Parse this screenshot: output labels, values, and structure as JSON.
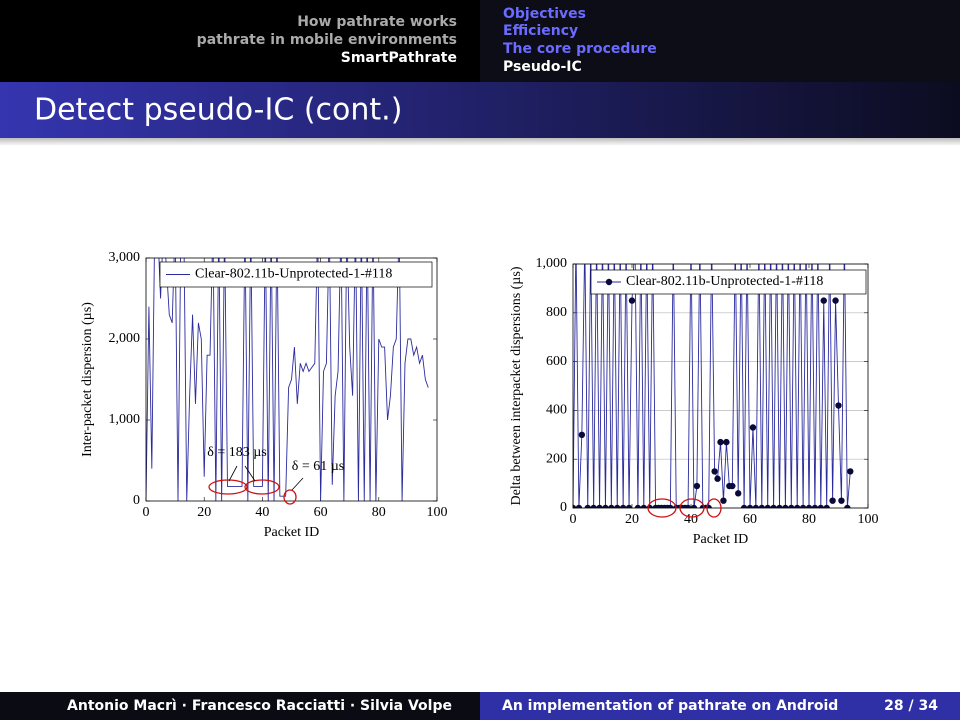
{
  "header": {
    "left_nav": [
      "How pathrate works",
      "pathrate in mobile environments",
      "SmartPathrate"
    ],
    "right_nav": [
      "Objectives",
      "Efficiency",
      "The core procedure",
      "Pseudo-IC"
    ],
    "title": "Detect pseudo-IC (cont.)"
  },
  "chart_data": [
    {
      "type": "line",
      "xlabel": "Packet ID",
      "ylabel": "Inter-packet dispersion (µs)",
      "xlim": [
        0,
        100
      ],
      "ylim": [
        0,
        3000
      ],
      "xticks": [
        0,
        20,
        40,
        60,
        80,
        100
      ],
      "yticks": [
        0,
        {
          "value": 1000,
          "label": "1,000"
        },
        {
          "value": 2000,
          "label": "2,000"
        },
        {
          "value": 3000,
          "label": "3,000"
        }
      ],
      "grid": false,
      "legend": "upper right",
      "annotations": [
        "δ = 183 µs",
        "δ = 61 µs"
      ],
      "series": [
        {
          "name": "Clear-802.11b-Unprotected-1-#118",
          "color": "#2b2b9e",
          "markers": false,
          "x": [
            0,
            1,
            2,
            3,
            4,
            5,
            6,
            7,
            8,
            9,
            10,
            11,
            12,
            13,
            14,
            15,
            16,
            17,
            18,
            19,
            20,
            21,
            22,
            23,
            24,
            25,
            26,
            27,
            28,
            29,
            30,
            31,
            32,
            33,
            34,
            35,
            36,
            37,
            38,
            39,
            40,
            41,
            42,
            43,
            44,
            45,
            46,
            47,
            48,
            49,
            50,
            51,
            52,
            53,
            54,
            55,
            56,
            57,
            58,
            59,
            60,
            61,
            62,
            63,
            64,
            65,
            66,
            67,
            68,
            69,
            70,
            71,
            72,
            73,
            74,
            75,
            76,
            77,
            78,
            79,
            80,
            81,
            82,
            83,
            84,
            85,
            86,
            87,
            88,
            89,
            90,
            91,
            92,
            93,
            94,
            95,
            96,
            97
          ],
          "values": [
            0,
            2400,
            400,
            3400,
            3400,
            2500,
            3400,
            2900,
            2300,
            2200,
            3400,
            0,
            3400,
            3400,
            0,
            1300,
            2300,
            1200,
            2200,
            2000,
            300,
            1800,
            1800,
            3400,
            0,
            3400,
            0,
            3400,
            180,
            180,
            180,
            180,
            180,
            180,
            3400,
            0,
            3400,
            180,
            180,
            180,
            180,
            3400,
            0,
            3400,
            0,
            3400,
            60,
            60,
            60,
            1400,
            1500,
            1900,
            1200,
            1700,
            1600,
            1700,
            1600,
            1650,
            1700,
            3400,
            0,
            1600,
            1700,
            3400,
            200,
            1300,
            1600,
            3400,
            0,
            3400,
            1900,
            1300,
            3400,
            0,
            3400,
            0,
            3400,
            0,
            3400,
            0,
            2000,
            1900,
            1900,
            1000,
            1300,
            1900,
            2000,
            3400,
            0,
            1700,
            2000,
            2000,
            1800,
            1900,
            1700,
            1800,
            1500,
            1400
          ]
        }
      ]
    },
    {
      "type": "line",
      "xlabel": "Packet ID",
      "ylabel": "Delta between interpacket dispersions (µs)",
      "xlim": [
        0,
        100
      ],
      "ylim": [
        0,
        1000
      ],
      "xticks": [
        0,
        20,
        40,
        60,
        80,
        100
      ],
      "yticks": [
        0,
        200,
        400,
        600,
        800,
        {
          "value": 1000,
          "label": "1,000"
        }
      ],
      "grid": true,
      "legend": "upper right",
      "series": [
        {
          "name": "Clear-802.11b-Unprotected-1-#118",
          "color": "#2b2b9e",
          "marker_color": "#0a0a3a",
          "markers": true,
          "x": [
            0,
            1,
            2,
            3,
            4,
            5,
            6,
            7,
            8,
            9,
            10,
            11,
            12,
            13,
            14,
            15,
            16,
            17,
            18,
            19,
            20,
            21,
            22,
            23,
            24,
            25,
            26,
            27,
            28,
            29,
            30,
            31,
            32,
            33,
            34,
            35,
            36,
            37,
            38,
            39,
            40,
            41,
            42,
            43,
            44,
            45,
            46,
            47,
            48,
            49,
            50,
            51,
            52,
            53,
            54,
            55,
            56,
            57,
            58,
            59,
            60,
            61,
            62,
            63,
            64,
            65,
            66,
            67,
            68,
            69,
            70,
            71,
            72,
            73,
            74,
            75,
            76,
            77,
            78,
            79,
            80,
            81,
            82,
            83,
            84,
            85,
            86,
            87,
            88,
            89,
            90,
            91,
            92,
            93,
            94
          ],
          "values": [
            0,
            1100,
            0,
            300,
            1100,
            0,
            1100,
            0,
            1100,
            0,
            1100,
            0,
            1100,
            0,
            1100,
            0,
            1100,
            0,
            1100,
            0,
            850,
            1100,
            0,
            1100,
            0,
            1100,
            0,
            1100,
            0,
            0,
            0,
            0,
            0,
            0,
            1100,
            0,
            0,
            0,
            0,
            0,
            1100,
            0,
            90,
            1100,
            0,
            0,
            0,
            1100,
            150,
            120,
            270,
            30,
            270,
            90,
            90,
            1100,
            60,
            1100,
            0,
            1100,
            0,
            330,
            0,
            1100,
            0,
            1100,
            0,
            1100,
            0,
            1100,
            0,
            1100,
            0,
            1100,
            0,
            1100,
            0,
            1100,
            0,
            1100,
            0,
            1100,
            0,
            1100,
            0,
            850,
            0,
            1100,
            30,
            850,
            420,
            30,
            1100,
            0,
            150
          ]
        }
      ]
    }
  ],
  "footer": {
    "authors": "Antonio Macrì · Francesco Racciatti · Silvia Volpe",
    "talk_title": "An implementation of pathrate on Android",
    "page": "28 / 34"
  }
}
